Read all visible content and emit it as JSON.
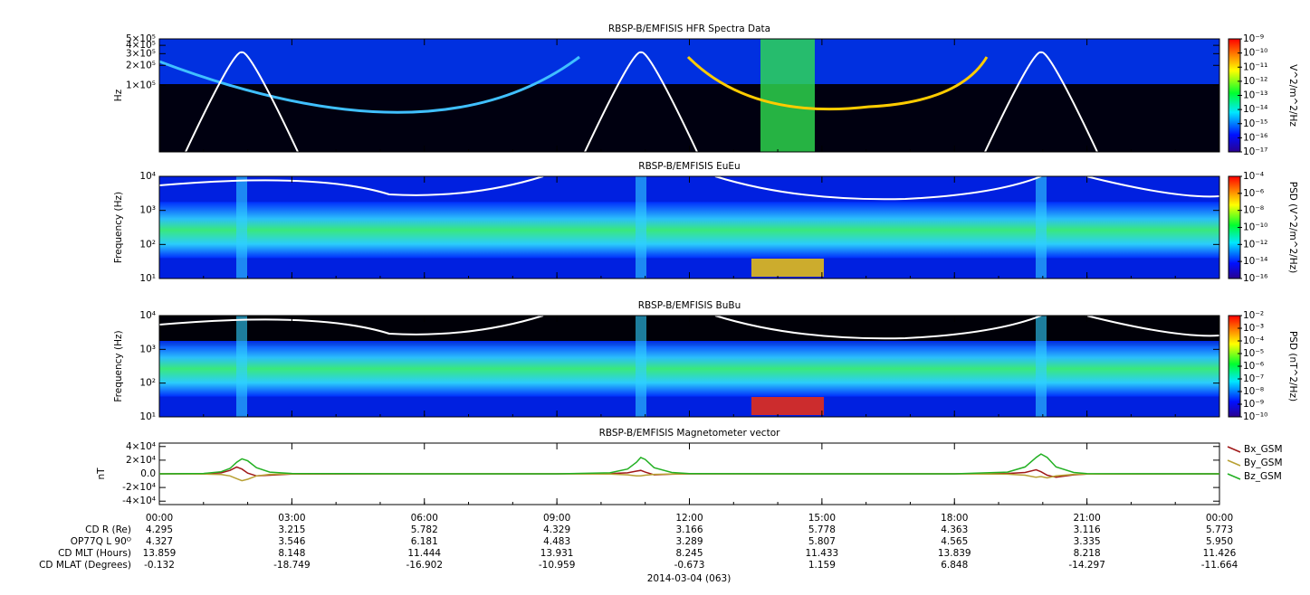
{
  "chart_data": [
    {
      "type": "spectrogram",
      "title": "RBSP-B/EMFISIS  HFR Spectra Data",
      "ylabel": "Hz",
      "log_y": true,
      "ylim": [
        10000,
        500000
      ],
      "yticks": [
        {
          "value": 500000,
          "label": "5×10⁵"
        },
        {
          "value": 400000,
          "label": "4×10⁵"
        },
        {
          "value": 300000,
          "label": "3×10⁵"
        },
        {
          "value": 200000,
          "label": "2×10⁵"
        },
        {
          "value": 100000,
          "label": "1×10⁵"
        }
      ],
      "colorbar_label": "V^2/m^2/Hz",
      "zlim": [
        1e-17,
        1e-09
      ],
      "zticks": [
        {
          "value": 1e-09,
          "label": "10⁻⁹"
        },
        {
          "value": 1e-10,
          "label": "10⁻¹⁰"
        },
        {
          "value": 1e-11,
          "label": "10⁻¹¹"
        },
        {
          "value": 1e-12,
          "label": "10⁻¹²"
        },
        {
          "value": 1e-13,
          "label": "10⁻¹³"
        },
        {
          "value": 1e-14,
          "label": "10⁻¹⁴"
        },
        {
          "value": 1e-15,
          "label": "10⁻¹⁵"
        },
        {
          "value": 1e-16,
          "label": "10⁻¹⁶"
        },
        {
          "value": 1e-17,
          "label": "10⁻¹⁷"
        }
      ]
    },
    {
      "type": "spectrogram",
      "title": "RBSP-B/EMFISIS  EuEu",
      "ylabel": "Frequency (Hz)",
      "log_y": true,
      "ylim": [
        10,
        10000
      ],
      "yticks": [
        {
          "value": 10,
          "label": "10¹"
        },
        {
          "value": 100,
          "label": "10²"
        },
        {
          "value": 1000,
          "label": "10³"
        },
        {
          "value": 10000,
          "label": "10⁴"
        }
      ],
      "colorbar_label": "PSD (V^2/m^2/Hz)",
      "zlim": [
        1e-16,
        0.0001
      ],
      "zticks": [
        {
          "value": 0.0001,
          "label": "10⁻⁴"
        },
        {
          "value": 1e-06,
          "label": "10⁻⁶"
        },
        {
          "value": 1e-08,
          "label": "10⁻⁸"
        },
        {
          "value": 1e-10,
          "label": "10⁻¹⁰"
        },
        {
          "value": 1e-12,
          "label": "10⁻¹²"
        },
        {
          "value": 1e-14,
          "label": "10⁻¹⁴"
        },
        {
          "value": 1e-16,
          "label": "10⁻¹⁶"
        }
      ]
    },
    {
      "type": "spectrogram",
      "title": "RBSP-B/EMFISIS  BuBu",
      "ylabel": "Frequency (Hz)",
      "log_y": true,
      "ylim": [
        10,
        10000
      ],
      "yticks": [
        {
          "value": 10,
          "label": "10¹"
        },
        {
          "value": 100,
          "label": "10²"
        },
        {
          "value": 1000,
          "label": "10³"
        },
        {
          "value": 10000,
          "label": "10⁴"
        }
      ],
      "colorbar_label": "PSD (nT^2/Hz)",
      "zlim": [
        1e-10,
        0.01
      ],
      "zticks": [
        {
          "value": 0.01,
          "label": "10⁻²"
        },
        {
          "value": 0.001,
          "label": "10⁻³"
        },
        {
          "value": 0.0001,
          "label": "10⁻⁴"
        },
        {
          "value": 1e-05,
          "label": "10⁻⁵"
        },
        {
          "value": 1e-06,
          "label": "10⁻⁶"
        },
        {
          "value": 1e-07,
          "label": "10⁻⁷"
        },
        {
          "value": 1e-08,
          "label": "10⁻⁸"
        },
        {
          "value": 1e-09,
          "label": "10⁻⁹"
        },
        {
          "value": 1e-10,
          "label": "10⁻¹⁰"
        }
      ]
    },
    {
      "type": "line",
      "title": "RBSP-B/EMFISIS  Magnetometer vector",
      "ylabel": "nT",
      "ylim": [
        -45000,
        45000
      ],
      "yticks": [
        {
          "value": 40000,
          "label": "4×10⁴"
        },
        {
          "value": 20000,
          "label": "2×10⁴"
        },
        {
          "value": 0,
          "label": "0.0"
        },
        {
          "value": -20000,
          "label": "-2×10⁴"
        },
        {
          "value": -40000,
          "label": "-4×10⁴"
        }
      ],
      "xlim": [
        0,
        24
      ],
      "xticks": [
        {
          "value": 0,
          "label": "00:00"
        },
        {
          "value": 3,
          "label": "03:00"
        },
        {
          "value": 6,
          "label": "06:00"
        },
        {
          "value": 9,
          "label": "09:00"
        },
        {
          "value": 12,
          "label": "12:00"
        },
        {
          "value": 15,
          "label": "15:00"
        },
        {
          "value": 18,
          "label": "18:00"
        },
        {
          "value": 21,
          "label": "21:00"
        },
        {
          "value": 24,
          "label": "00:00"
        }
      ],
      "x": [
        0,
        1,
        1.4,
        1.6,
        1.75,
        1.87,
        2,
        2.2,
        2.5,
        3,
        6,
        9,
        10.2,
        10.6,
        10.8,
        10.9,
        11,
        11.2,
        11.6,
        12,
        15,
        18,
        19.2,
        19.6,
        19.85,
        19.96,
        20.1,
        20.3,
        20.7,
        21,
        24
      ],
      "series": [
        {
          "name": "Bx_GSM",
          "color": "#a01818",
          "values": [
            0,
            200,
            1500,
            5000,
            10000,
            7000,
            1000,
            -3000,
            -2000,
            -300,
            0,
            0,
            300,
            1500,
            4000,
            5000,
            2500,
            -1500,
            -500,
            0,
            0,
            0,
            500,
            2000,
            6000,
            3000,
            -2000,
            -5000,
            -1500,
            -300,
            0
          ]
        },
        {
          "name": "By_GSM",
          "color": "#b8a032",
          "values": [
            0,
            -200,
            -1000,
            -3000,
            -7000,
            -10000,
            -8000,
            -3000,
            -800,
            -100,
            0,
            0,
            -300,
            -1500,
            -3000,
            -3000,
            -2000,
            -800,
            -200,
            0,
            0,
            0,
            -500,
            -2000,
            -5000,
            -4000,
            -6000,
            -3000,
            -800,
            -200,
            0
          ]
        },
        {
          "name": "Bz_GSM",
          "color": "#22b022",
          "values": [
            0,
            500,
            3000,
            8000,
            17000,
            22000,
            19000,
            9000,
            2500,
            500,
            0,
            0,
            1500,
            7000,
            17000,
            24000,
            21000,
            9000,
            2000,
            300,
            0,
            0,
            2500,
            10000,
            24000,
            29000,
            24000,
            10000,
            2000,
            400,
            0
          ]
        }
      ]
    }
  ],
  "ephemeris": {
    "rows": [
      {
        "label": "CD R (Re)",
        "values": [
          "4.295",
          "3.215",
          "5.782",
          "4.329",
          "3.166",
          "5.778",
          "4.363",
          "3.116",
          "5.773"
        ]
      },
      {
        "label": "OP77Q L 90ᴼ",
        "values": [
          "4.327",
          "3.546",
          "6.181",
          "4.483",
          "3.289",
          "5.807",
          "4.565",
          "3.335",
          "5.950"
        ]
      },
      {
        "label": "CD MLT (Hours)",
        "values": [
          "13.859",
          "8.148",
          "11.444",
          "13.931",
          "8.245",
          "11.433",
          "13.839",
          "8.218",
          "11.426"
        ]
      },
      {
        "label": "CD MLAT (Degrees)",
        "values": [
          "-0.132",
          "-18.749",
          "-16.902",
          "-10.959",
          "-0.673",
          "1.159",
          "6.848",
          "-14.297",
          "-11.664"
        ]
      }
    ],
    "date": "2014-03-04 (063)"
  }
}
